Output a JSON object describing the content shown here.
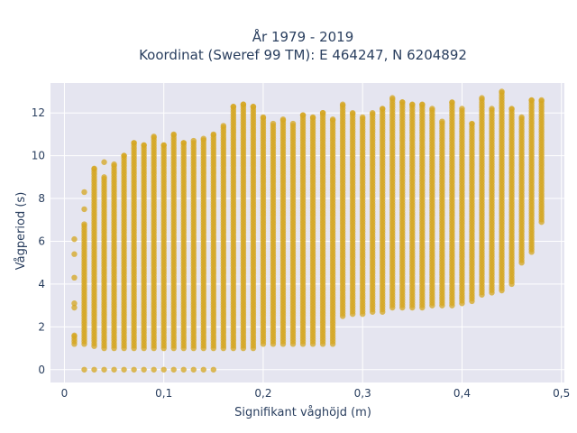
{
  "chart_data": {
    "type": "scatter",
    "title_line1": "År 1979 - 2019",
    "title_line2": "Koordinat (Sweref 99 TM): E 464247, N 6204892",
    "xlabel": "Signifikant våghöjd (m)",
    "ylabel": "Vågperiod (s)",
    "xlim": [
      -0.014,
      0.503
    ],
    "ylim": [
      -0.6,
      13.4
    ],
    "x_ticks": [
      0,
      0.1,
      0.2,
      0.3,
      0.4,
      0.5
    ],
    "x_tick_labels": [
      "0",
      "0,1",
      "0,2",
      "0,3",
      "0,4",
      "0,5"
    ],
    "y_ticks": [
      0,
      2,
      4,
      6,
      8,
      10,
      12
    ],
    "y_tick_labels": [
      "0",
      "2",
      "4",
      "6",
      "8",
      "10",
      "12"
    ],
    "grid": true,
    "background": "#e5e5f0",
    "marker_color": "#d4a520",
    "columns": [
      {
        "x": 0.01,
        "ymin": 1.2,
        "ymax": 1.6,
        "extra": [
          2.9,
          3.1,
          4.3,
          5.4,
          6.1
        ]
      },
      {
        "x": 0.02,
        "ymin": 1.2,
        "ymax": 6.8,
        "extra": [
          0,
          7.5,
          8.3
        ]
      },
      {
        "x": 0.03,
        "ymin": 1.1,
        "ymax": 9.4,
        "extra": [
          0
        ]
      },
      {
        "x": 0.04,
        "ymin": 1.0,
        "ymax": 9.0,
        "extra": [
          0,
          9.7
        ]
      },
      {
        "x": 0.05,
        "ymin": 1.0,
        "ymax": 9.6,
        "extra": [
          0
        ]
      },
      {
        "x": 0.06,
        "ymin": 1.0,
        "ymax": 10.0,
        "extra": [
          0
        ]
      },
      {
        "x": 0.07,
        "ymin": 1.0,
        "ymax": 10.6,
        "extra": [
          0
        ]
      },
      {
        "x": 0.08,
        "ymin": 1.0,
        "ymax": 10.5,
        "extra": [
          0
        ]
      },
      {
        "x": 0.09,
        "ymin": 1.0,
        "ymax": 10.9,
        "extra": [
          0
        ]
      },
      {
        "x": 0.1,
        "ymin": 1.0,
        "ymax": 10.5,
        "extra": [
          0
        ]
      },
      {
        "x": 0.11,
        "ymin": 1.0,
        "ymax": 11.0,
        "extra": [
          0
        ]
      },
      {
        "x": 0.12,
        "ymin": 1.0,
        "ymax": 10.6,
        "extra": [
          0
        ]
      },
      {
        "x": 0.13,
        "ymin": 1.0,
        "ymax": 10.7,
        "extra": [
          0
        ]
      },
      {
        "x": 0.14,
        "ymin": 1.0,
        "ymax": 10.8,
        "extra": [
          0
        ]
      },
      {
        "x": 0.15,
        "ymin": 1.0,
        "ymax": 11.0,
        "extra": [
          0
        ]
      },
      {
        "x": 0.16,
        "ymin": 1.0,
        "ymax": 11.4,
        "extra": []
      },
      {
        "x": 0.17,
        "ymin": 1.0,
        "ymax": 12.3,
        "extra": []
      },
      {
        "x": 0.18,
        "ymin": 1.0,
        "ymax": 12.4,
        "extra": []
      },
      {
        "x": 0.19,
        "ymin": 1.0,
        "ymax": 12.3,
        "extra": []
      },
      {
        "x": 0.2,
        "ymin": 1.2,
        "ymax": 11.8,
        "extra": []
      },
      {
        "x": 0.21,
        "ymin": 1.2,
        "ymax": 11.5,
        "extra": []
      },
      {
        "x": 0.22,
        "ymin": 1.2,
        "ymax": 11.7,
        "extra": []
      },
      {
        "x": 0.23,
        "ymin": 1.2,
        "ymax": 11.5,
        "extra": []
      },
      {
        "x": 0.24,
        "ymin": 1.2,
        "ymax": 11.9,
        "extra": []
      },
      {
        "x": 0.25,
        "ymin": 1.2,
        "ymax": 11.8,
        "extra": []
      },
      {
        "x": 0.26,
        "ymin": 1.2,
        "ymax": 12.0,
        "extra": []
      },
      {
        "x": 0.27,
        "ymin": 1.2,
        "ymax": 11.7,
        "extra": []
      },
      {
        "x": 0.28,
        "ymin": 2.5,
        "ymax": 12.4,
        "extra": []
      },
      {
        "x": 0.29,
        "ymin": 2.6,
        "ymax": 12.0,
        "extra": []
      },
      {
        "x": 0.3,
        "ymin": 2.6,
        "ymax": 11.8,
        "extra": []
      },
      {
        "x": 0.31,
        "ymin": 2.7,
        "ymax": 12.0,
        "extra": []
      },
      {
        "x": 0.32,
        "ymin": 2.7,
        "ymax": 12.2,
        "extra": []
      },
      {
        "x": 0.33,
        "ymin": 2.9,
        "ymax": 12.7,
        "extra": []
      },
      {
        "x": 0.34,
        "ymin": 2.9,
        "ymax": 12.5,
        "extra": []
      },
      {
        "x": 0.35,
        "ymin": 2.9,
        "ymax": 12.4,
        "extra": []
      },
      {
        "x": 0.36,
        "ymin": 2.9,
        "ymax": 12.4,
        "extra": []
      },
      {
        "x": 0.37,
        "ymin": 3.0,
        "ymax": 12.2,
        "extra": []
      },
      {
        "x": 0.38,
        "ymin": 3.0,
        "ymax": 11.6,
        "extra": []
      },
      {
        "x": 0.39,
        "ymin": 3.0,
        "ymax": 12.5,
        "extra": []
      },
      {
        "x": 0.4,
        "ymin": 3.1,
        "ymax": 12.2,
        "extra": []
      },
      {
        "x": 0.41,
        "ymin": 3.2,
        "ymax": 11.5,
        "extra": []
      },
      {
        "x": 0.42,
        "ymin": 3.5,
        "ymax": 12.7,
        "extra": []
      },
      {
        "x": 0.43,
        "ymin": 3.6,
        "ymax": 12.2,
        "extra": []
      },
      {
        "x": 0.44,
        "ymin": 3.7,
        "ymax": 13.0,
        "extra": []
      },
      {
        "x": 0.45,
        "ymin": 4.0,
        "ymax": 12.2,
        "extra": []
      },
      {
        "x": 0.46,
        "ymin": 5.0,
        "ymax": 11.8,
        "extra": []
      },
      {
        "x": 0.47,
        "ymin": 5.5,
        "ymax": 12.6,
        "extra": []
      },
      {
        "x": 0.48,
        "ymin": 6.9,
        "ymax": 12.6,
        "extra": []
      }
    ]
  }
}
